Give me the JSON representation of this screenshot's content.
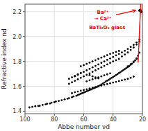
{
  "chart_data": {
    "type": "scatter",
    "x_label": "Abbe number νd",
    "y_label": "Refractive index nd",
    "xlim": [
      100,
      20
    ],
    "ylim": [
      1.38,
      2.26
    ],
    "xticks": [
      100,
      80,
      60,
      40,
      20
    ],
    "yticks": [
      1.4,
      1.6,
      1.8,
      {
        "value": 2.0,
        "label": "2.0"
      },
      2.2
    ],
    "grid": true,
    "series": [
      {
        "color": "black",
        "marker": "circle",
        "x": [
          97,
          95,
          93,
          91,
          90,
          88,
          86,
          85,
          83,
          82,
          80,
          79,
          77,
          75,
          73,
          71,
          70,
          68,
          67,
          65,
          64,
          63,
          62,
          61,
          60,
          59,
          58,
          57,
          56,
          55,
          54,
          53,
          52,
          51,
          50,
          49,
          48,
          47,
          46,
          45,
          44,
          43,
          42,
          41,
          40,
          39,
          38,
          37,
          36,
          35,
          34,
          33,
          32,
          31,
          30,
          29,
          28,
          27,
          26,
          25,
          24,
          23,
          22,
          68,
          66,
          64,
          62,
          60,
          58,
          56,
          54,
          52,
          50,
          48,
          46,
          44,
          42,
          40,
          38,
          36,
          34,
          32,
          30,
          28,
          26,
          70,
          68,
          66,
          64,
          62,
          60,
          58,
          56,
          54,
          52,
          50,
          48,
          46,
          44,
          42,
          40,
          38,
          36,
          66,
          64,
          62,
          60,
          58,
          56,
          54,
          52,
          50,
          48,
          46,
          44,
          42,
          40,
          38,
          36,
          34,
          32,
          30,
          28,
          26,
          24,
          22,
          62,
          60,
          58,
          56,
          54,
          52,
          50,
          48,
          46,
          44,
          42,
          40,
          38,
          36,
          34,
          32,
          30,
          28,
          26,
          24,
          22,
          70,
          68,
          66,
          64,
          62,
          56,
          54,
          52,
          50,
          58,
          56,
          54,
          52,
          50,
          48,
          46,
          44,
          42,
          30,
          28,
          26,
          24
        ],
        "values": [
          1.43,
          1.435,
          1.44,
          1.442,
          1.443,
          1.45,
          1.455,
          1.46,
          1.462,
          1.468,
          1.472,
          1.478,
          1.482,
          1.488,
          1.495,
          1.5,
          1.505,
          1.512,
          1.518,
          1.524,
          1.53,
          1.535,
          1.54,
          1.545,
          1.55,
          1.555,
          1.56,
          1.565,
          1.57,
          1.575,
          1.58,
          1.585,
          1.59,
          1.595,
          1.6,
          1.608,
          1.615,
          1.622,
          1.63,
          1.638,
          1.645,
          1.652,
          1.66,
          1.668,
          1.675,
          1.682,
          1.69,
          1.698,
          1.706,
          1.714,
          1.722,
          1.73,
          1.738,
          1.746,
          1.754,
          1.762,
          1.772,
          1.782,
          1.794,
          1.808,
          1.825,
          1.845,
          1.87,
          1.545,
          1.552,
          1.558,
          1.564,
          1.57,
          1.576,
          1.582,
          1.588,
          1.594,
          1.6,
          1.606,
          1.612,
          1.618,
          1.624,
          1.63,
          1.636,
          1.642,
          1.648,
          1.654,
          1.66,
          1.668,
          1.678,
          1.62,
          1.632,
          1.644,
          1.656,
          1.668,
          1.68,
          1.692,
          1.704,
          1.716,
          1.728,
          1.74,
          1.752,
          1.764,
          1.776,
          1.788,
          1.8,
          1.81,
          1.82,
          1.68,
          1.692,
          1.704,
          1.716,
          1.728,
          1.74,
          1.752,
          1.764,
          1.776,
          1.788,
          1.8,
          1.812,
          1.824,
          1.836,
          1.848,
          1.86,
          1.872,
          1.885,
          1.9,
          1.916,
          1.933,
          1.952,
          1.975,
          1.76,
          1.77,
          1.78,
          1.79,
          1.8,
          1.81,
          1.82,
          1.83,
          1.84,
          1.85,
          1.86,
          1.868,
          1.876,
          1.884,
          1.84,
          1.855,
          1.872,
          1.892,
          1.912,
          1.935,
          1.96,
          1.66,
          1.672,
          1.684,
          1.696,
          1.708,
          1.69,
          1.68,
          1.672,
          1.664,
          1.64,
          1.648,
          1.656,
          1.664,
          1.672,
          1.68,
          1.688,
          1.696,
          1.704,
          1.76,
          1.778,
          1.798,
          1.82
        ]
      },
      {
        "color": "black",
        "marker": "circle",
        "x": [
          20.8,
          21.0,
          21.3,
          21.6,
          21.9,
          22.2,
          21.1,
          21.5,
          21.8,
          20.9
        ],
        "values": [
          2.195,
          2.2,
          2.205,
          2.208,
          2.21,
          2.208,
          2.212,
          2.215,
          2.213,
          2.203
        ]
      }
    ],
    "annotations": [
      {
        "text": "Ba²⁺\n→ Ca²⁺",
        "x": 47,
        "y": 2.22,
        "color": "red"
      },
      {
        "text": "BaTi₂O₅ glass",
        "x": 44,
        "y": 2.1,
        "color": "red"
      }
    ],
    "arrows": [
      {
        "from": [
          38,
          2.175
        ],
        "to": [
          24.5,
          2.21
        ],
        "color": "red"
      }
    ],
    "ellipses": [
      {
        "center": [
          21.4,
          2.206
        ],
        "width": 3.2,
        "height": 0.048,
        "angle": -15,
        "color": "red"
      }
    ]
  }
}
